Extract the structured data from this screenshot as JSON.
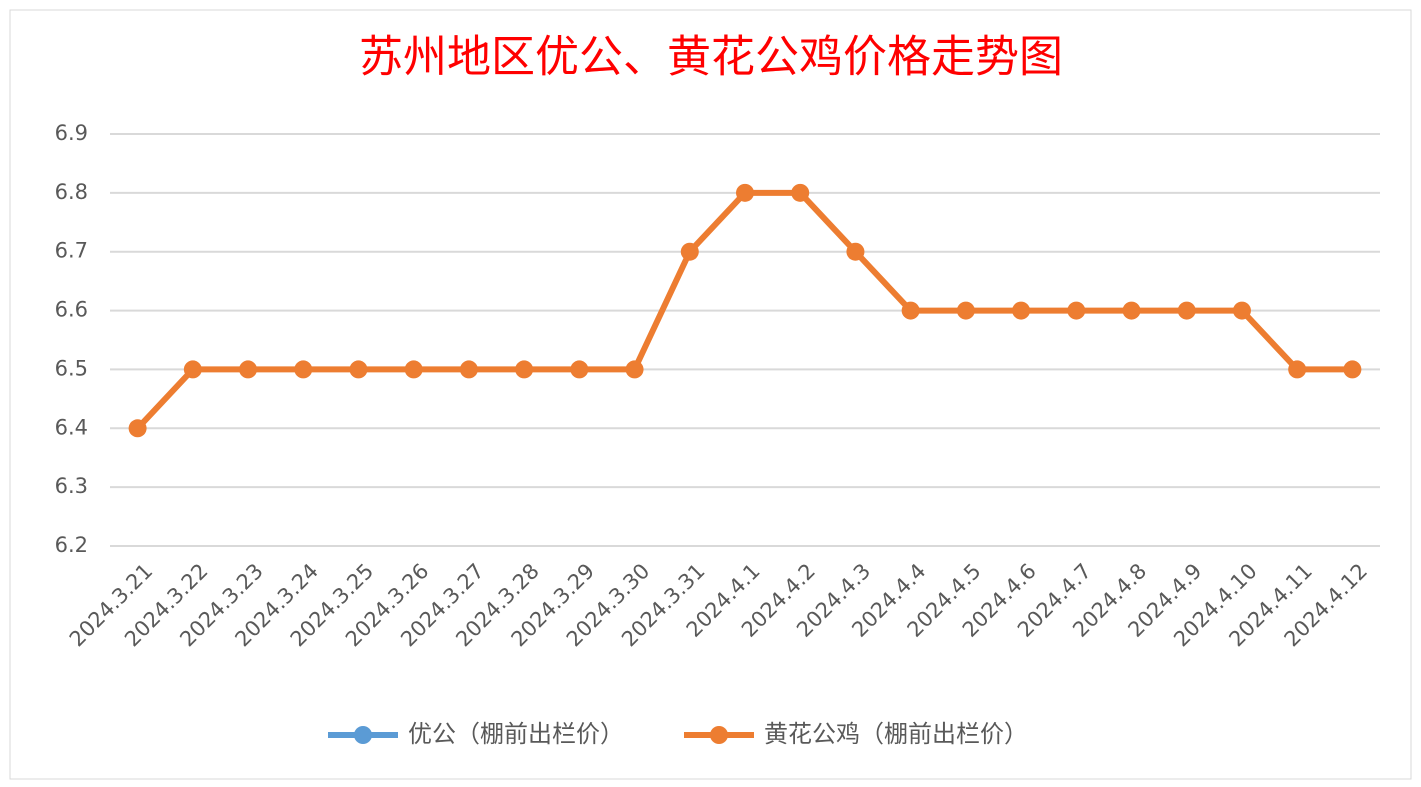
{
  "chart_data": {
    "type": "line",
    "title": "苏州地区优公、黄花公鸡价格走势图",
    "categories": [
      "2024.3.21",
      "2024.3.22",
      "2024.3.23",
      "2024.3.24",
      "2024.3.25",
      "2024.3.26",
      "2024.3.27",
      "2024.3.28",
      "2024.3.29",
      "2024.3.30",
      "2024.3.31",
      "2024.4.1",
      "2024.4.2",
      "2024.4.3",
      "2024.4.4",
      "2024.4.5",
      "2024.4.6",
      "2024.4.7",
      "2024.4.8",
      "2024.4.9",
      "2024.4.10",
      "2024.4.11",
      "2024.4.12"
    ],
    "series": [
      {
        "name": "优公（棚前出栏价）",
        "color": "#5b9bd5",
        "values": [
          null,
          null,
          null,
          null,
          null,
          null,
          null,
          null,
          null,
          null,
          null,
          null,
          null,
          null,
          null,
          null,
          null,
          null,
          null,
          null,
          null,
          null,
          null
        ]
      },
      {
        "name": "黄花公鸡（棚前出栏价）",
        "color": "#ed7d31",
        "values": [
          6.4,
          6.5,
          6.5,
          6.5,
          6.5,
          6.5,
          6.5,
          6.5,
          6.5,
          6.5,
          6.7,
          6.8,
          6.8,
          6.7,
          6.6,
          6.6,
          6.6,
          6.6,
          6.6,
          6.6,
          6.6,
          6.5,
          6.5
        ]
      }
    ],
    "ylim": [
      6.2,
      6.9
    ],
    "yticks": [
      6.2,
      6.3,
      6.4,
      6.5,
      6.6,
      6.7,
      6.8,
      6.9
    ],
    "grid": true,
    "legend": "bottom"
  }
}
